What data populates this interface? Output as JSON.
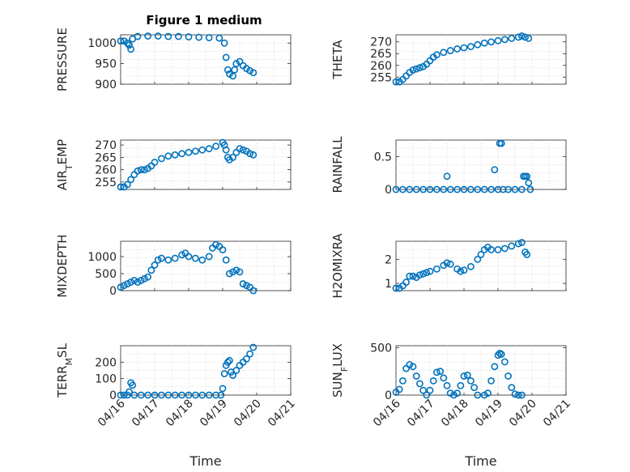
{
  "figure_title": "Figure 1 medium",
  "colors": {
    "marker": "#0072BD",
    "axes": "#262626",
    "grid": "#d8d8d8"
  },
  "chart_data": [
    {
      "type": "scatter",
      "title": "Figure 1 medium",
      "ylabel": "PRESSURE",
      "xlabel": "",
      "xlim": [
        0,
        5
      ],
      "ylim": [
        900,
        1020
      ],
      "yticks": [
        900,
        950,
        1000
      ],
      "xticks": [],
      "ytick_labels": [
        "900",
        "950",
        "1000"
      ],
      "grid": true,
      "points": [
        [
          0,
          1005
        ],
        [
          0.1,
          1005
        ],
        [
          0.2,
          1000
        ],
        [
          0.25,
          995
        ],
        [
          0.3,
          985
        ],
        [
          0.35,
          1010
        ],
        [
          0.5,
          1016
        ],
        [
          0.8,
          1017
        ],
        [
          1.1,
          1017
        ],
        [
          1.4,
          1016
        ],
        [
          1.7,
          1016
        ],
        [
          2.0,
          1015
        ],
        [
          2.3,
          1014
        ],
        [
          2.6,
          1013
        ],
        [
          2.9,
          1012
        ],
        [
          3.05,
          1000
        ],
        [
          3.1,
          965
        ],
        [
          3.15,
          935
        ],
        [
          3.2,
          925
        ],
        [
          3.3,
          920
        ],
        [
          3.35,
          935
        ],
        [
          3.4,
          950
        ],
        [
          3.5,
          955
        ],
        [
          3.6,
          945
        ],
        [
          3.7,
          938
        ],
        [
          3.8,
          933
        ],
        [
          3.9,
          928
        ]
      ]
    },
    {
      "type": "scatter",
      "title": "",
      "ylabel": "THETA",
      "xlabel": "",
      "xlim": [
        0,
        5
      ],
      "ylim": [
        252,
        273
      ],
      "yticks": [
        255,
        260,
        265,
        270
      ],
      "xticks": [],
      "ytick_labels": [
        "255",
        "260",
        "265",
        "270"
      ],
      "grid": true,
      "points": [
        [
          0,
          253
        ],
        [
          0.1,
          253
        ],
        [
          0.2,
          254
        ],
        [
          0.3,
          255.5
        ],
        [
          0.4,
          257
        ],
        [
          0.5,
          258
        ],
        [
          0.6,
          258.5
        ],
        [
          0.7,
          259
        ],
        [
          0.8,
          259.5
        ],
        [
          0.9,
          260.5
        ],
        [
          1.0,
          262
        ],
        [
          1.1,
          263.5
        ],
        [
          1.2,
          264.5
        ],
        [
          1.4,
          265.5
        ],
        [
          1.6,
          266.3
        ],
        [
          1.8,
          267
        ],
        [
          2.0,
          267.5
        ],
        [
          2.2,
          268
        ],
        [
          2.4,
          268.8
        ],
        [
          2.6,
          269.5
        ],
        [
          2.8,
          270
        ],
        [
          3.0,
          270.5
        ],
        [
          3.2,
          271
        ],
        [
          3.4,
          271.5
        ],
        [
          3.6,
          272
        ],
        [
          3.7,
          272.5
        ],
        [
          3.8,
          272
        ],
        [
          3.9,
          271.5
        ]
      ]
    },
    {
      "type": "scatter",
      "title": "",
      "ylabel": "AIR_TEMP",
      "xlabel": "",
      "xlim": [
        0,
        5
      ],
      "ylim": [
        252,
        272
      ],
      "yticks": [
        255,
        260,
        265,
        270
      ],
      "xticks": [],
      "ytick_labels": [
        "255",
        "260",
        "265",
        "270"
      ],
      "grid": true,
      "points": [
        [
          0,
          253
        ],
        [
          0.1,
          253
        ],
        [
          0.2,
          254
        ],
        [
          0.3,
          256
        ],
        [
          0.4,
          258
        ],
        [
          0.5,
          259.5
        ],
        [
          0.6,
          260
        ],
        [
          0.7,
          260
        ],
        [
          0.8,
          260.5
        ],
        [
          0.9,
          261.5
        ],
        [
          1.0,
          263
        ],
        [
          1.2,
          264.5
        ],
        [
          1.4,
          265.5
        ],
        [
          1.6,
          266
        ],
        [
          1.8,
          266.5
        ],
        [
          2.0,
          267
        ],
        [
          2.2,
          267.5
        ],
        [
          2.4,
          268
        ],
        [
          2.6,
          268.5
        ],
        [
          2.8,
          269.5
        ],
        [
          3.0,
          271
        ],
        [
          3.05,
          270
        ],
        [
          3.1,
          268
        ],
        [
          3.15,
          265
        ],
        [
          3.2,
          264
        ],
        [
          3.3,
          265
        ],
        [
          3.4,
          267
        ],
        [
          3.5,
          268.5
        ],
        [
          3.6,
          268
        ],
        [
          3.7,
          267.5
        ],
        [
          3.8,
          266.5
        ],
        [
          3.9,
          266
        ]
      ]
    },
    {
      "type": "scatter",
      "title": "",
      "ylabel": "RAINFALL",
      "xlabel": "",
      "xlim": [
        0,
        5
      ],
      "ylim": [
        0,
        0.75
      ],
      "yticks": [
        0,
        0.5
      ],
      "xticks": [],
      "ytick_labels": [
        "0",
        "0.5"
      ],
      "grid": true,
      "points": [
        [
          0,
          0
        ],
        [
          0.2,
          0
        ],
        [
          0.4,
          0
        ],
        [
          0.6,
          0
        ],
        [
          0.8,
          0
        ],
        [
          1.0,
          0
        ],
        [
          1.2,
          0
        ],
        [
          1.4,
          0
        ],
        [
          1.5,
          0.2
        ],
        [
          1.6,
          0
        ],
        [
          1.8,
          0
        ],
        [
          2.0,
          0
        ],
        [
          2.2,
          0
        ],
        [
          2.4,
          0
        ],
        [
          2.6,
          0
        ],
        [
          2.8,
          0
        ],
        [
          2.9,
          0.3
        ],
        [
          3.0,
          0
        ],
        [
          3.05,
          0.7
        ],
        [
          3.1,
          0.7
        ],
        [
          3.15,
          0
        ],
        [
          3.3,
          0
        ],
        [
          3.5,
          0
        ],
        [
          3.7,
          0
        ],
        [
          3.75,
          0.2
        ],
        [
          3.8,
          0.2
        ],
        [
          3.85,
          0.2
        ],
        [
          3.9,
          0.1
        ],
        [
          3.95,
          0
        ]
      ]
    },
    {
      "type": "scatter",
      "title": "",
      "ylabel": "MIXDEPTH",
      "xlabel": "",
      "xlim": [
        0,
        5
      ],
      "ylim": [
        0,
        1450
      ],
      "yticks": [
        0,
        500,
        1000
      ],
      "xticks": [],
      "ytick_labels": [
        "0",
        "500",
        "1000"
      ],
      "grid": true,
      "points": [
        [
          0,
          100
        ],
        [
          0.1,
          150
        ],
        [
          0.2,
          200
        ],
        [
          0.3,
          250
        ],
        [
          0.4,
          300
        ],
        [
          0.5,
          250
        ],
        [
          0.6,
          300
        ],
        [
          0.7,
          350
        ],
        [
          0.8,
          400
        ],
        [
          0.9,
          600
        ],
        [
          1.0,
          750
        ],
        [
          1.1,
          900
        ],
        [
          1.2,
          950
        ],
        [
          1.4,
          900
        ],
        [
          1.6,
          950
        ],
        [
          1.8,
          1050
        ],
        [
          1.9,
          1100
        ],
        [
          2.0,
          1000
        ],
        [
          2.2,
          950
        ],
        [
          2.4,
          900
        ],
        [
          2.6,
          1000
        ],
        [
          2.7,
          1250
        ],
        [
          2.8,
          1350
        ],
        [
          2.9,
          1300
        ],
        [
          3.0,
          1200
        ],
        [
          3.1,
          900
        ],
        [
          3.2,
          500
        ],
        [
          3.3,
          550
        ],
        [
          3.4,
          600
        ],
        [
          3.5,
          550
        ],
        [
          3.6,
          200
        ],
        [
          3.7,
          150
        ],
        [
          3.8,
          100
        ],
        [
          3.9,
          0
        ]
      ]
    },
    {
      "type": "scatter",
      "title": "",
      "ylabel": "H2OMIXRA",
      "xlabel": "",
      "xlim": [
        0,
        5
      ],
      "ylim": [
        0.7,
        2.75
      ],
      "yticks": [
        1,
        2
      ],
      "xticks": [],
      "ytick_labels": [
        "1",
        "2"
      ],
      "grid": true,
      "points": [
        [
          0,
          0.8
        ],
        [
          0.1,
          0.8
        ],
        [
          0.2,
          0.9
        ],
        [
          0.3,
          1.05
        ],
        [
          0.4,
          1.3
        ],
        [
          0.5,
          1.3
        ],
        [
          0.6,
          1.25
        ],
        [
          0.7,
          1.35
        ],
        [
          0.8,
          1.4
        ],
        [
          0.9,
          1.45
        ],
        [
          1.0,
          1.5
        ],
        [
          1.2,
          1.6
        ],
        [
          1.4,
          1.75
        ],
        [
          1.5,
          1.85
        ],
        [
          1.6,
          1.8
        ],
        [
          1.8,
          1.6
        ],
        [
          1.9,
          1.5
        ],
        [
          2.0,
          1.55
        ],
        [
          2.2,
          1.7
        ],
        [
          2.4,
          2.0
        ],
        [
          2.5,
          2.2
        ],
        [
          2.6,
          2.4
        ],
        [
          2.7,
          2.5
        ],
        [
          2.8,
          2.4
        ],
        [
          3.0,
          2.4
        ],
        [
          3.2,
          2.45
        ],
        [
          3.4,
          2.55
        ],
        [
          3.6,
          2.65
        ],
        [
          3.7,
          2.7
        ],
        [
          3.8,
          2.3
        ],
        [
          3.85,
          2.2
        ]
      ]
    },
    {
      "type": "scatter",
      "title": "",
      "ylabel": "TERR_MSL",
      "xlabel": "Time",
      "xlim": [
        0,
        5
      ],
      "ylim": [
        0,
        300
      ],
      "yticks": [
        0,
        100,
        200
      ],
      "xticks": [
        0,
        1,
        2,
        3,
        4,
        5
      ],
      "ytick_labels": [
        "0",
        "100",
        "200"
      ],
      "xtick_labels": [
        "04/16",
        "04/17",
        "04/18",
        "04/19",
        "04/20",
        "04/21"
      ],
      "grid": true,
      "points": [
        [
          0,
          0
        ],
        [
          0.1,
          0
        ],
        [
          0.2,
          0
        ],
        [
          0.25,
          20
        ],
        [
          0.3,
          75
        ],
        [
          0.35,
          60
        ],
        [
          0.4,
          0
        ],
        [
          0.6,
          0
        ],
        [
          0.8,
          0
        ],
        [
          1.0,
          0
        ],
        [
          1.2,
          0
        ],
        [
          1.4,
          0
        ],
        [
          1.6,
          0
        ],
        [
          1.8,
          0
        ],
        [
          2.0,
          0
        ],
        [
          2.2,
          0
        ],
        [
          2.4,
          0
        ],
        [
          2.6,
          0
        ],
        [
          2.8,
          0
        ],
        [
          2.95,
          0
        ],
        [
          3.0,
          40
        ],
        [
          3.05,
          130
        ],
        [
          3.1,
          180
        ],
        [
          3.15,
          200
        ],
        [
          3.2,
          210
        ],
        [
          3.25,
          140
        ],
        [
          3.3,
          120
        ],
        [
          3.4,
          150
        ],
        [
          3.5,
          180
        ],
        [
          3.6,
          200
        ],
        [
          3.7,
          220
        ],
        [
          3.8,
          250
        ],
        [
          3.9,
          290
        ]
      ]
    },
    {
      "type": "scatter",
      "title": "",
      "ylabel": "SUN_FLUX",
      "xlabel": "Time",
      "xlim": [
        0,
        5
      ],
      "ylim": [
        0,
        520
      ],
      "yticks": [
        0,
        500
      ],
      "xticks": [
        0,
        1,
        2,
        3,
        4,
        5
      ],
      "ytick_labels": [
        "0",
        "500"
      ],
      "xtick_labels": [
        "04/16",
        "04/17",
        "04/18",
        "04/19",
        "04/20",
        "04/21"
      ],
      "grid": true,
      "points": [
        [
          0,
          30
        ],
        [
          0.1,
          60
        ],
        [
          0.2,
          150
        ],
        [
          0.3,
          280
        ],
        [
          0.4,
          320
        ],
        [
          0.5,
          300
        ],
        [
          0.6,
          200
        ],
        [
          0.7,
          120
        ],
        [
          0.8,
          50
        ],
        [
          0.9,
          0
        ],
        [
          1.0,
          50
        ],
        [
          1.1,
          150
        ],
        [
          1.2,
          240
        ],
        [
          1.3,
          250
        ],
        [
          1.4,
          180
        ],
        [
          1.5,
          100
        ],
        [
          1.6,
          20
        ],
        [
          1.7,
          0
        ],
        [
          1.8,
          20
        ],
        [
          1.9,
          100
        ],
        [
          2.0,
          200
        ],
        [
          2.1,
          210
        ],
        [
          2.2,
          150
        ],
        [
          2.3,
          80
        ],
        [
          2.4,
          0
        ],
        [
          2.6,
          0
        ],
        [
          2.7,
          20
        ],
        [
          2.8,
          150
        ],
        [
          2.9,
          300
        ],
        [
          3.0,
          420
        ],
        [
          3.05,
          440
        ],
        [
          3.1,
          430
        ],
        [
          3.2,
          350
        ],
        [
          3.3,
          200
        ],
        [
          3.4,
          80
        ],
        [
          3.5,
          10
        ],
        [
          3.6,
          0
        ],
        [
          3.7,
          0
        ]
      ]
    }
  ]
}
